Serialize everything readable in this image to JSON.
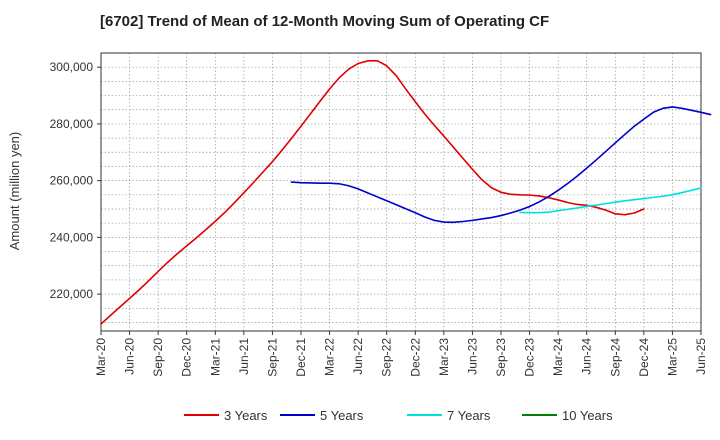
{
  "chart_data": {
    "type": "line",
    "title": "[6702]  Trend of Mean of 12-Month Moving Sum of Operating CF",
    "xlabel": "",
    "ylabel": "Amount (million yen)",
    "ylim": [
      207000,
      305000
    ],
    "yticks": [
      220000,
      240000,
      260000,
      280000,
      300000
    ],
    "ytick_labels": [
      "220,000",
      "240,000",
      "260,000",
      "280,000",
      "300,000"
    ],
    "grid": true,
    "legend_position": "bottom",
    "x_start": "Mar-20",
    "x_end": "Jun-25",
    "x_tick_labels": [
      "Mar-20",
      "Jun-20",
      "Sep-20",
      "Dec-20",
      "Mar-21",
      "Jun-21",
      "Sep-21",
      "Dec-21",
      "Mar-22",
      "Jun-22",
      "Sep-22",
      "Dec-22",
      "Mar-23",
      "Jun-23",
      "Sep-23",
      "Dec-23",
      "Mar-24",
      "Jun-24",
      "Sep-24",
      "Dec-24",
      "Mar-25",
      "Jun-25"
    ],
    "series": [
      {
        "name": "3 Years",
        "color": "#e00000",
        "start": "Mar-20",
        "values": [
          209500,
          212500,
          215500,
          218500,
          221500,
          224700,
          228000,
          231200,
          234200,
          237000,
          239800,
          242700,
          245700,
          248800,
          252200,
          255700,
          259300,
          263000,
          266700,
          270700,
          274900,
          279200,
          283600,
          288000,
          292300,
          296200,
          299300,
          301300,
          302200,
          302300,
          300500,
          297000,
          292300,
          287800,
          283500,
          279500,
          275700,
          271800,
          267900,
          264000,
          260300,
          257500,
          255900,
          255200,
          255000,
          254900,
          254600,
          254000,
          253200,
          252300,
          251600,
          251300,
          250600,
          249600,
          248300,
          248000,
          248600,
          250000
        ]
      },
      {
        "name": "5 Years",
        "color": "#0000cc",
        "start": "Nov-21",
        "values": [
          259500,
          259300,
          259200,
          259100,
          259100,
          258900,
          258200,
          257100,
          255700,
          254300,
          252900,
          251500,
          250100,
          248700,
          247200,
          246000,
          245400,
          245300,
          245600,
          246000,
          246500,
          247000,
          247700,
          248600,
          249600,
          250900,
          252500,
          254400,
          256600,
          259000,
          261600,
          264400,
          267300,
          270300,
          273300,
          276300,
          279200,
          281700,
          284100,
          285500,
          286000,
          285500,
          284800,
          284100,
          283300
        ]
      },
      {
        "name": "7 Years",
        "color": "#00e0e0",
        "start": "Nov-23",
        "values": [
          248800,
          248700,
          248700,
          248900,
          249400,
          249900,
          250400,
          250900,
          251400,
          251900,
          252400,
          252900,
          253300,
          253700,
          254100,
          254500,
          255000,
          255800,
          256600,
          257400
        ]
      },
      {
        "name": "10 Years",
        "color": "#008000",
        "start": "Mar-25",
        "values": []
      }
    ]
  }
}
